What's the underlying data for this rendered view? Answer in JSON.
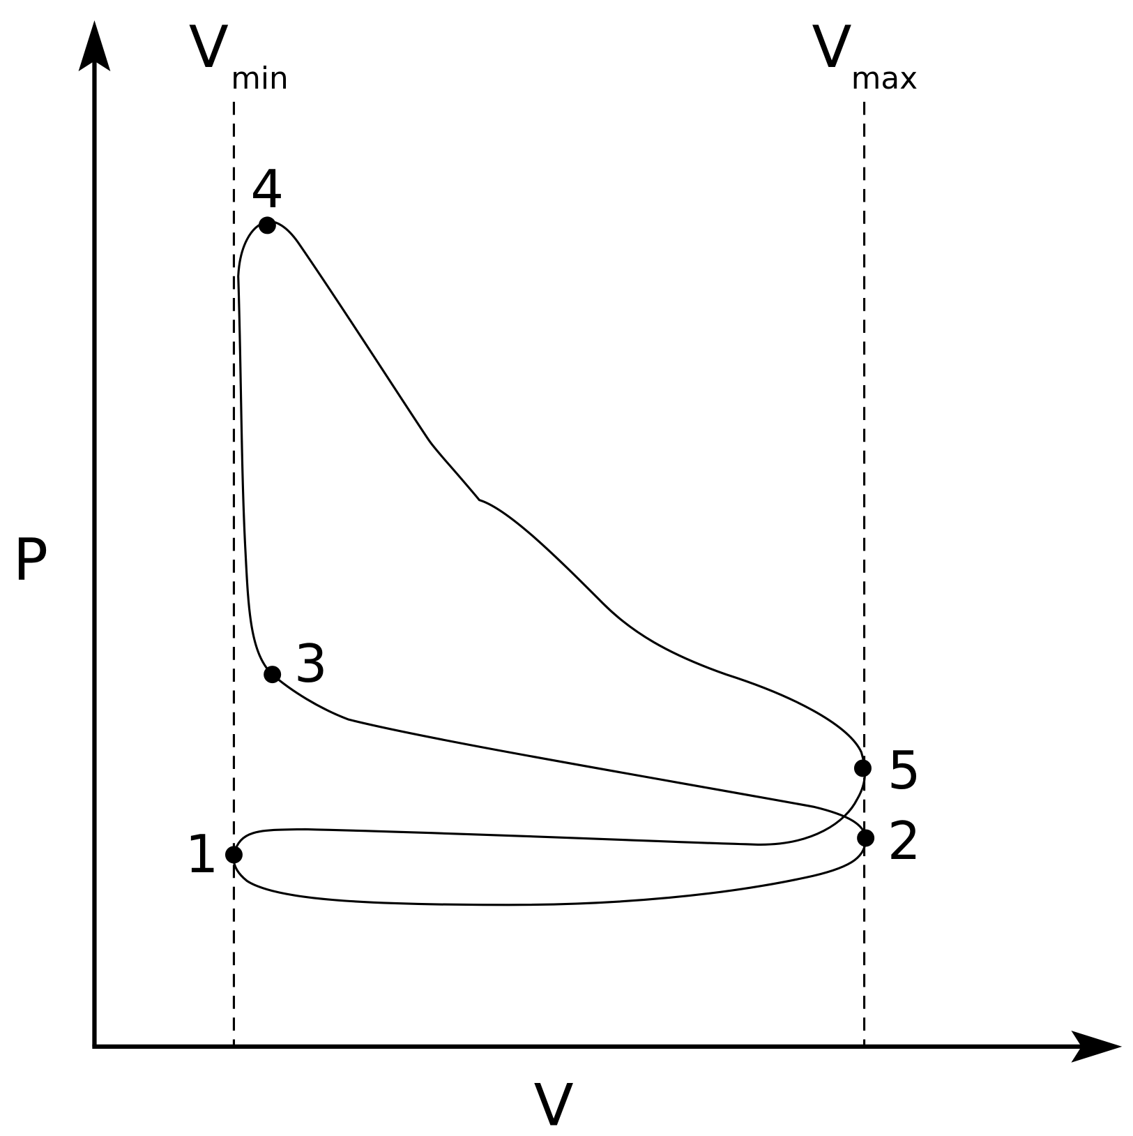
{
  "axes": {
    "y_label": "P",
    "x_label": "V"
  },
  "markers": [
    {
      "symbol": "V",
      "subscript": "min"
    },
    {
      "symbol": "V",
      "subscript": "max"
    }
  ],
  "points": [
    {
      "label": "1"
    },
    {
      "label": "2"
    },
    {
      "label": "3"
    },
    {
      "label": "4"
    },
    {
      "label": "5"
    }
  ]
}
